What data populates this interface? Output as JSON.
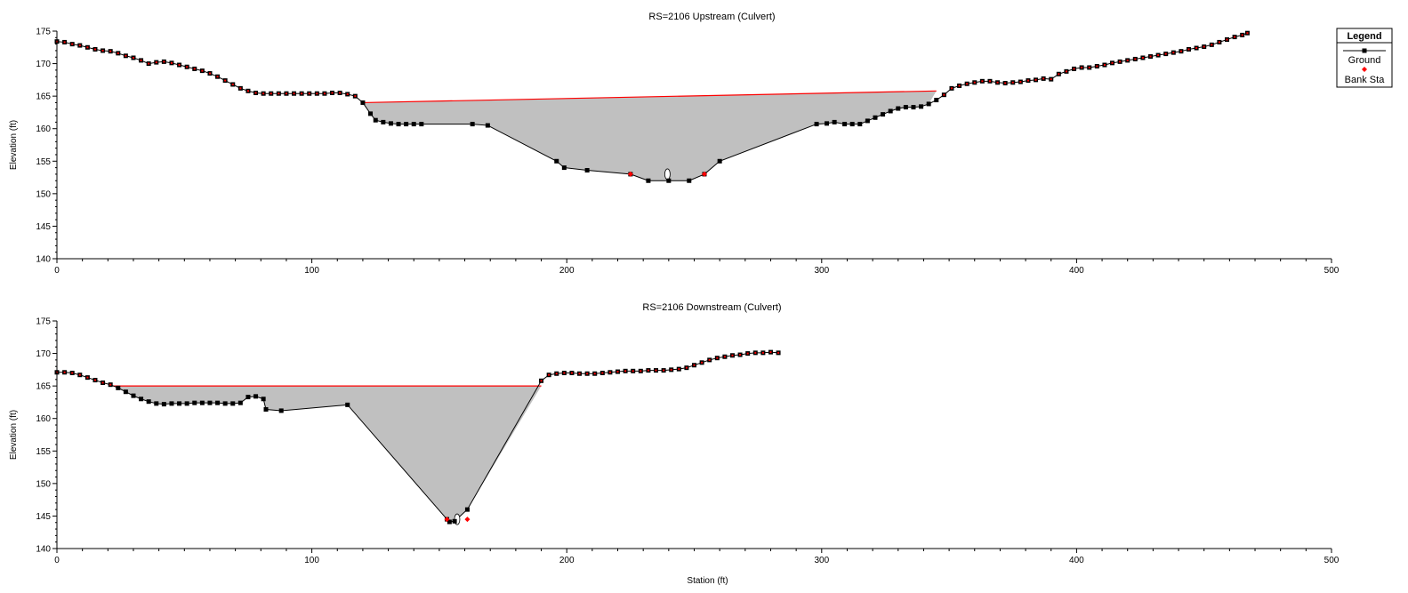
{
  "chart_data": [
    {
      "type": "area",
      "title": "RS=2106    Upstream  (Culvert)",
      "xlabel": "",
      "ylabel": "Elevation (ft)",
      "xlim": [
        0,
        500
      ],
      "ylim": [
        140,
        175
      ],
      "x_ticks": [
        "0",
        "100",
        "200",
        "300",
        "400",
        "500"
      ],
      "y_ticks": [
        "140",
        "145",
        "150",
        "155",
        "160",
        "165",
        "170",
        "175"
      ],
      "grid": false,
      "series": [
        {
          "name": "Ground",
          "x": [
            0,
            3,
            6,
            9,
            12,
            15,
            18,
            21,
            24,
            27,
            30,
            33,
            36,
            39,
            42,
            45,
            48,
            51,
            54,
            57,
            60,
            63,
            66,
            69,
            72,
            75,
            78,
            81,
            84,
            87,
            90,
            93,
            96,
            99,
            102,
            105,
            108,
            111,
            114,
            117,
            120,
            123,
            125,
            128,
            131,
            134,
            137,
            140,
            143,
            163,
            169,
            196,
            199,
            208,
            225,
            232,
            240,
            248,
            254,
            260,
            298,
            302,
            305,
            309,
            312,
            315,
            318,
            321,
            324,
            327,
            330,
            333,
            336,
            339,
            342,
            345,
            348,
            351,
            354,
            357,
            360,
            363,
            366,
            369,
            372,
            375,
            378,
            381,
            384,
            387,
            390,
            393,
            396,
            399,
            402,
            405,
            408,
            411,
            414,
            417,
            420,
            423,
            426,
            429,
            432,
            435,
            438,
            441,
            444,
            447,
            450,
            453,
            456,
            459,
            462,
            465,
            467
          ],
          "y": [
            173.4,
            173.3,
            173.0,
            172.8,
            172.5,
            172.2,
            172.0,
            171.9,
            171.6,
            171.2,
            170.9,
            170.5,
            170.0,
            170.2,
            170.3,
            170.1,
            169.8,
            169.5,
            169.2,
            168.9,
            168.5,
            168.0,
            167.4,
            166.8,
            166.2,
            165.8,
            165.5,
            165.4,
            165.4,
            165.4,
            165.4,
            165.4,
            165.4,
            165.4,
            165.4,
            165.4,
            165.5,
            165.5,
            165.3,
            165.0,
            164.0,
            162.3,
            161.3,
            161.0,
            160.8,
            160.7,
            160.7,
            160.7,
            160.7,
            160.7,
            160.5,
            155.0,
            154.0,
            153.6,
            153.0,
            152.0,
            152.0,
            152.0,
            153.0,
            155.0,
            160.7,
            160.8,
            161.0,
            160.7,
            160.7,
            160.7,
            161.2,
            161.7,
            162.2,
            162.7,
            163.1,
            163.3,
            163.3,
            163.4,
            163.8,
            164.4,
            165.2,
            166.2,
            166.6,
            166.9,
            167.1,
            167.3,
            167.3,
            167.1,
            167.0,
            167.1,
            167.2,
            167.4,
            167.5,
            167.7,
            167.6,
            168.4,
            168.8,
            169.2,
            169.4,
            169.4,
            169.6,
            169.8,
            170.1,
            170.3,
            170.5,
            170.7,
            170.9,
            171.1,
            171.3,
            171.5,
            171.7,
            171.9,
            172.2,
            172.4,
            172.6,
            172.9,
            173.3,
            173.7,
            174.1,
            174.4,
            174.7
          ]
        },
        {
          "name": "Bank Sta",
          "x": [
            225,
            254
          ],
          "y": [
            153.0,
            153.0
          ]
        },
        {
          "name": "Water Surface",
          "x": [
            120,
            345
          ],
          "y": [
            164.0,
            165.8
          ]
        }
      ]
    },
    {
      "type": "area",
      "title": "RS=2106    Downstream  (Culvert)",
      "xlabel": "Station (ft)",
      "ylabel": "Elevation (ft)",
      "xlim": [
        0,
        500
      ],
      "ylim": [
        140,
        175
      ],
      "x_ticks": [
        "0",
        "100",
        "200",
        "300",
        "400",
        "500"
      ],
      "y_ticks": [
        "140",
        "145",
        "150",
        "155",
        "160",
        "165",
        "170",
        "175"
      ],
      "grid": false,
      "series": [
        {
          "name": "Ground",
          "x": [
            0,
            3,
            6,
            9,
            12,
            15,
            18,
            21,
            24,
            27,
            30,
            33,
            36,
            39,
            42,
            45,
            48,
            51,
            54,
            57,
            60,
            63,
            66,
            69,
            72,
            75,
            78,
            81,
            82,
            88,
            114,
            153,
            154,
            156,
            161,
            190,
            193,
            196,
            199,
            202,
            205,
            208,
            211,
            214,
            217,
            220,
            223,
            226,
            229,
            232,
            235,
            238,
            241,
            244,
            247,
            250,
            253,
            256,
            259,
            262,
            265,
            268,
            271,
            274,
            277,
            280,
            283
          ],
          "y": [
            167.1,
            167.1,
            167.0,
            166.7,
            166.3,
            165.9,
            165.5,
            165.2,
            164.7,
            164.1,
            163.5,
            163.0,
            162.6,
            162.3,
            162.2,
            162.3,
            162.3,
            162.3,
            162.4,
            162.4,
            162.4,
            162.4,
            162.3,
            162.3,
            162.4,
            163.3,
            163.4,
            163.0,
            161.4,
            161.2,
            162.1,
            144.5,
            144.1,
            144.2,
            146.0,
            165.8,
            166.7,
            166.9,
            167.0,
            167.0,
            166.9,
            166.9,
            166.9,
            167.0,
            167.1,
            167.2,
            167.3,
            167.3,
            167.3,
            167.4,
            167.4,
            167.4,
            167.5,
            167.6,
            167.8,
            168.2,
            168.6,
            169.0,
            169.3,
            169.5,
            169.7,
            169.8,
            170.0,
            170.1,
            170.1,
            170.2,
            170.1
          ]
        },
        {
          "name": "Bank Sta",
          "x": [
            153,
            161
          ],
          "y": [
            144.5,
            144.5
          ]
        },
        {
          "name": "Water Surface",
          "x": [
            22,
            190
          ],
          "y": [
            165.0,
            165.0
          ]
        }
      ]
    }
  ],
  "legend": {
    "title": "Legend",
    "items": [
      "Ground",
      "Bank Sta"
    ]
  },
  "colors": {
    "ground_marker": "#000000",
    "ground_line": "#000000",
    "bank_sta": "#ff0000",
    "water_surface": "#ff0000",
    "flow_area": "#c0c0c0"
  }
}
